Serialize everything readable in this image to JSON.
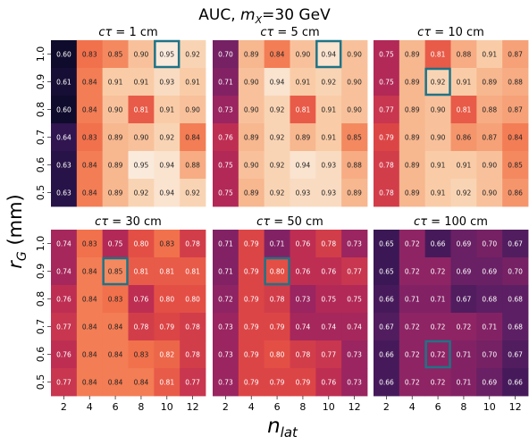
{
  "figure": {
    "title": "AUC, m_X=30 GeV",
    "title_parts": [
      "AUC, ",
      "m",
      "X",
      "=30 GeV"
    ],
    "xlabel_parts": [
      "n",
      "lat"
    ],
    "ylabel_parts": [
      "r",
      "G",
      " (mm)"
    ]
  },
  "chart_data": [
    {
      "type": "heatmap",
      "title": "cτ = 1 cm",
      "x": [
        2,
        4,
        6,
        8,
        10,
        12
      ],
      "y": [
        "1.0",
        "0.9",
        "0.8",
        "0.7",
        "0.6",
        "0.5"
      ],
      "values": [
        [
          0.6,
          0.83,
          0.85,
          0.9,
          0.95,
          0.92
        ],
        [
          0.61,
          0.84,
          0.91,
          0.91,
          0.93,
          0.91
        ],
        [
          0.6,
          0.84,
          0.9,
          0.81,
          0.91,
          0.9
        ],
        [
          0.64,
          0.83,
          0.89,
          0.9,
          0.92,
          0.84
        ],
        [
          0.63,
          0.84,
          0.89,
          0.95,
          0.94,
          0.88
        ],
        [
          0.63,
          0.84,
          0.89,
          0.92,
          0.94,
          0.92
        ]
      ],
      "highlight": {
        "row": 0,
        "col": 4
      }
    },
    {
      "type": "heatmap",
      "title": "cτ = 5 cm",
      "x": [
        2,
        4,
        6,
        8,
        10,
        12
      ],
      "y": [
        "1.0",
        "0.9",
        "0.8",
        "0.7",
        "0.6",
        "0.5"
      ],
      "values": [
        [
          0.7,
          0.89,
          0.84,
          0.9,
          0.94,
          0.9
        ],
        [
          0.71,
          0.9,
          0.94,
          0.91,
          0.92,
          0.9
        ],
        [
          0.73,
          0.9,
          0.92,
          0.81,
          0.91,
          0.9
        ],
        [
          0.76,
          0.89,
          0.92,
          0.89,
          0.91,
          0.85
        ],
        [
          0.75,
          0.9,
          0.92,
          0.94,
          0.93,
          0.88
        ],
        [
          0.75,
          0.89,
          0.92,
          0.93,
          0.93,
          0.89
        ]
      ],
      "highlight": {
        "row": 0,
        "col": 4
      }
    },
    {
      "type": "heatmap",
      "title": "cτ = 10 cm",
      "x": [
        2,
        4,
        6,
        8,
        10,
        12
      ],
      "y": [
        "1.0",
        "0.9",
        "0.8",
        "0.7",
        "0.6",
        "0.5"
      ],
      "values": [
        [
          0.75,
          0.89,
          0.81,
          0.88,
          0.91,
          0.87
        ],
        [
          0.75,
          0.89,
          0.92,
          0.91,
          0.89,
          0.88
        ],
        [
          0.77,
          0.89,
          0.9,
          0.81,
          0.88,
          0.87
        ],
        [
          0.79,
          0.89,
          0.9,
          0.86,
          0.87,
          0.84
        ],
        [
          0.78,
          0.89,
          0.91,
          0.91,
          0.9,
          0.85
        ],
        [
          0.78,
          0.89,
          0.91,
          0.92,
          0.9,
          0.86
        ]
      ],
      "highlight": {
        "row": 1,
        "col": 2
      }
    },
    {
      "type": "heatmap",
      "title": "cτ = 30 cm",
      "x": [
        2,
        4,
        6,
        8,
        10,
        12
      ],
      "y": [
        "1.0",
        "0.9",
        "0.8",
        "0.7",
        "0.6",
        "0.5"
      ],
      "values": [
        [
          0.74,
          0.83,
          0.75,
          0.8,
          0.83,
          0.78
        ],
        [
          0.74,
          0.84,
          0.85,
          0.81,
          0.81,
          0.81
        ],
        [
          0.76,
          0.84,
          0.83,
          0.76,
          0.8,
          0.8
        ],
        [
          0.77,
          0.84,
          0.84,
          0.78,
          0.79,
          0.78
        ],
        [
          0.76,
          0.84,
          0.84,
          0.83,
          0.82,
          0.78
        ],
        [
          0.77,
          0.84,
          0.84,
          0.84,
          0.81,
          0.77
        ]
      ],
      "highlight": {
        "row": 1,
        "col": 2
      }
    },
    {
      "type": "heatmap",
      "title": "cτ = 50 cm",
      "x": [
        2,
        4,
        6,
        8,
        10,
        12
      ],
      "y": [
        "1.0",
        "0.9",
        "0.8",
        "0.7",
        "0.6",
        "0.5"
      ],
      "values": [
        [
          0.71,
          0.79,
          0.71,
          0.76,
          0.78,
          0.73
        ],
        [
          0.71,
          0.79,
          0.8,
          0.76,
          0.76,
          0.77
        ],
        [
          0.72,
          0.79,
          0.78,
          0.73,
          0.75,
          0.75
        ],
        [
          0.73,
          0.79,
          0.79,
          0.74,
          0.74,
          0.74
        ],
        [
          0.73,
          0.79,
          0.8,
          0.78,
          0.77,
          0.73
        ],
        [
          0.73,
          0.79,
          0.79,
          0.79,
          0.76,
          0.73
        ]
      ],
      "highlight": {
        "row": 1,
        "col": 2
      }
    },
    {
      "type": "heatmap",
      "title": "cτ = 100 cm",
      "x": [
        2,
        4,
        6,
        8,
        10,
        12
      ],
      "y": [
        "1.0",
        "0.9",
        "0.8",
        "0.7",
        "0.6",
        "0.5"
      ],
      "values": [
        [
          0.65,
          0.72,
          0.66,
          0.69,
          0.7,
          0.67
        ],
        [
          0.65,
          0.72,
          0.72,
          0.69,
          0.69,
          0.7
        ],
        [
          0.66,
          0.71,
          0.71,
          0.67,
          0.68,
          0.68
        ],
        [
          0.67,
          0.72,
          0.72,
          0.72,
          0.71,
          0.68
        ],
        [
          0.66,
          0.72,
          0.72,
          0.71,
          0.7,
          0.67
        ],
        [
          0.66,
          0.72,
          0.72,
          0.71,
          0.69,
          0.66
        ]
      ],
      "highlight": {
        "row": 4,
        "col": 2
      }
    }
  ],
  "style": {
    "highlight_color": "#1f7386",
    "colormap_stops": [
      "#0f0b2c",
      "#2f1550",
      "#5a1f63",
      "#8a2365",
      "#b92a55",
      "#e14944",
      "#f2754d",
      "#f6a47a",
      "#f9cda8",
      "#faeadc"
    ],
    "color_range": [
      0.6,
      0.95
    ]
  }
}
